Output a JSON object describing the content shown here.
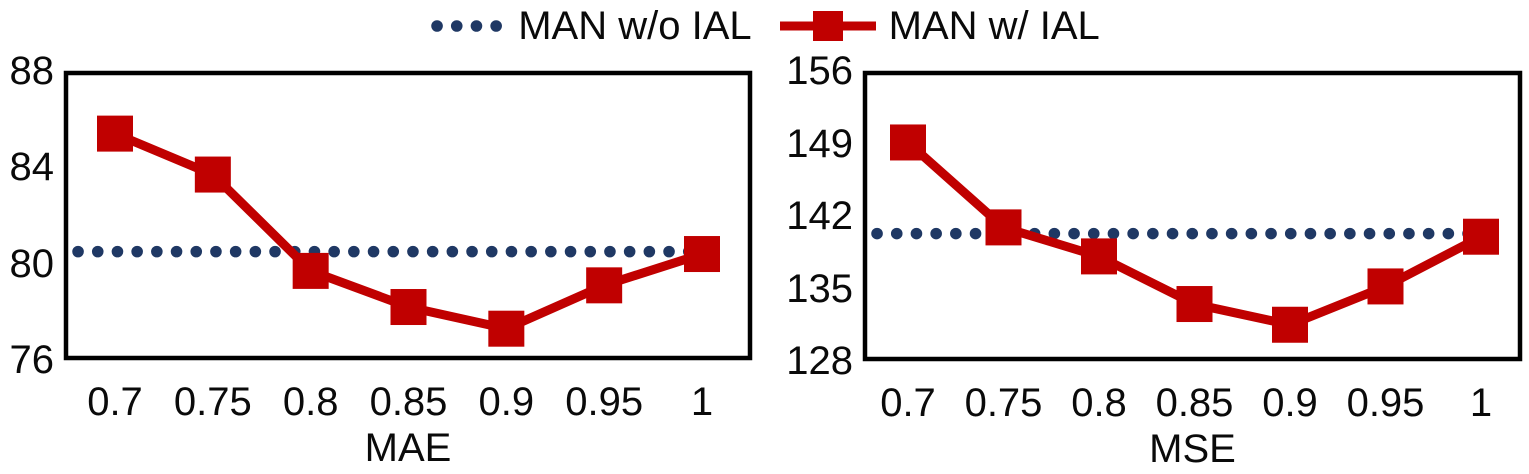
{
  "legend": {
    "series1": {
      "label": "MAN w/o IAL",
      "color": "#1f3864",
      "style": "dotted"
    },
    "series2": {
      "label": "MAN w/ IAL",
      "color": "#c00000",
      "style": "solid-square"
    }
  },
  "colors": {
    "baseline_blue": "#1f3864",
    "series_red": "#c00000",
    "plot_border": "#000000",
    "text": "#0a0a0a",
    "background": "#ffffff"
  },
  "chart_data": [
    {
      "type": "line",
      "xlabel": "MAE",
      "x": [
        0.7,
        0.75,
        0.8,
        0.85,
        0.9,
        0.95,
        1
      ],
      "xtick_labels": [
        "0.7",
        "0.75",
        "0.8",
        "0.85",
        "0.9",
        "0.95",
        "1"
      ],
      "yticks": [
        88,
        84,
        80,
        76
      ],
      "ylim": [
        76,
        88
      ],
      "grid": false,
      "legend_position": "top-center",
      "series": [
        {
          "name": "MAN w/o IAL",
          "style": "dotted-constant",
          "value": 80.5,
          "color": "#1f3864"
        },
        {
          "name": "MAN w/ IAL",
          "style": "line-square",
          "color": "#c00000",
          "values": [
            85.4,
            83.7,
            79.7,
            78.2,
            77.3,
            79.1,
            80.4
          ]
        }
      ]
    },
    {
      "type": "line",
      "xlabel": "MSE",
      "x": [
        0.7,
        0.75,
        0.8,
        0.85,
        0.9,
        0.95,
        1
      ],
      "xtick_labels": [
        "0.7",
        "0.75",
        "0.8",
        "0.85",
        "0.9",
        "0.95",
        "1"
      ],
      "yticks": [
        156,
        149,
        142,
        135,
        128
      ],
      "ylim": [
        128,
        156
      ],
      "grid": false,
      "legend_position": "top-center",
      "series": [
        {
          "name": "MAN w/o IAL",
          "style": "dotted-constant",
          "value": 140.3,
          "color": "#1f3864"
        },
        {
          "name": "MAN w/ IAL",
          "style": "line-square",
          "color": "#c00000",
          "values": [
            149.1,
            140.9,
            138.1,
            133.5,
            131.5,
            135.2,
            140.0
          ]
        }
      ]
    }
  ]
}
